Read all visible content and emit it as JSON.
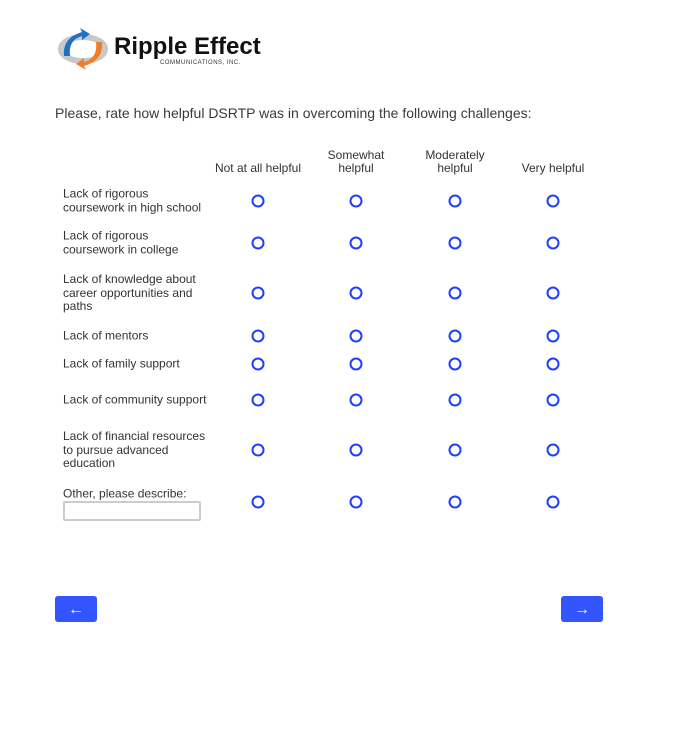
{
  "logo": {
    "name": "Ripple Effect",
    "tagline": "COMMUNICATIONS, INC."
  },
  "question": "Please, rate how helpful DSRTP was in overcoming the following challenges:",
  "columns": [
    "Not at all helpful",
    "Somewhat helpful",
    "Moderately helpful",
    "Very helpful"
  ],
  "rows": [
    "Lack of rigorous coursework in high school",
    "Lack of rigorous coursework in college",
    "Lack of knowledge about career opportunities and paths",
    "Lack of mentors",
    "Lack of family support",
    "Lack of community support",
    "Lack of financial resources to pursue advanced education",
    "Other, please describe:"
  ],
  "other_input": {
    "value": "",
    "placeholder": ""
  },
  "nav": {
    "back": "←",
    "next": "→"
  },
  "colors": {
    "accent": "#3355ff",
    "radio": "#1f3fff"
  }
}
